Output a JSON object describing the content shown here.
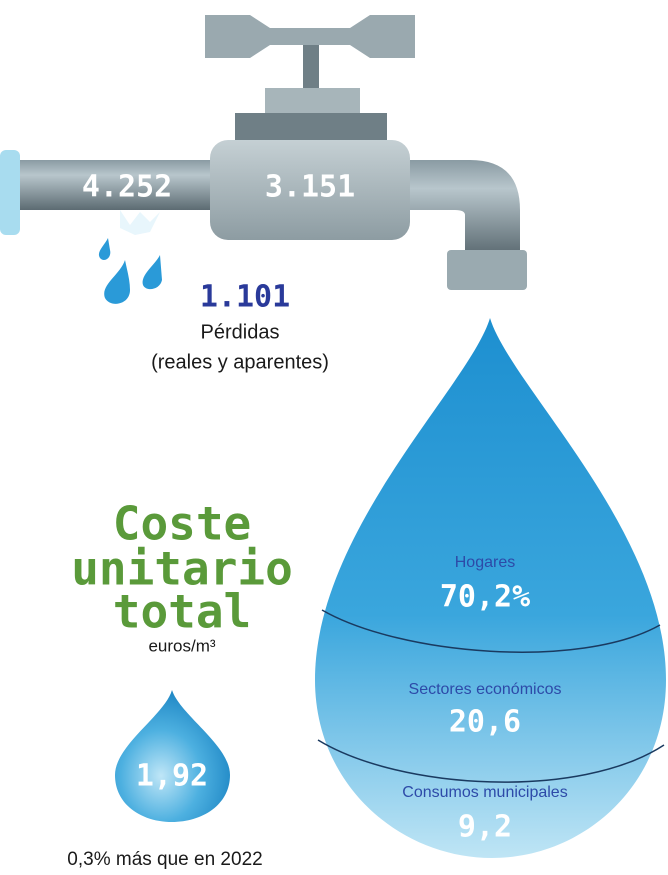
{
  "pipe": {
    "input": "4.252",
    "output": "3.151"
  },
  "losses": {
    "value": "1.101",
    "label": "Pérdidas",
    "sublabel": "(reales y aparentes)"
  },
  "unit_cost": {
    "title_lines": [
      "Coste",
      "unitario",
      "total"
    ],
    "unit": "euros/m³",
    "value": "1,92",
    "note": "0,3% más que en 2022"
  },
  "consumption": [
    {
      "label": "Hogares",
      "value": "70,2%"
    },
    {
      "label": "Sectores económicos",
      "value": "20,6"
    },
    {
      "label": "Consumos municipales",
      "value": "9,2"
    }
  ]
}
